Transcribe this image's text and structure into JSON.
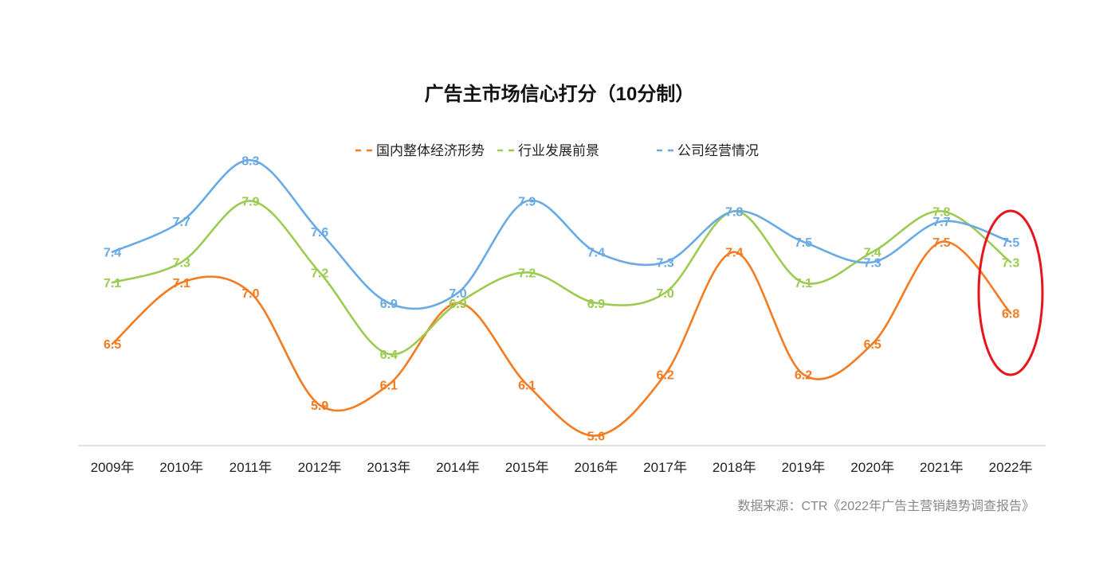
{
  "chart_data": {
    "type": "line",
    "title": "广告主市场信心打分（10分制）",
    "categories": [
      "2009年",
      "2010年",
      "2011年",
      "2012年",
      "2013年",
      "2014年",
      "2015年",
      "2016年",
      "2017年",
      "2018年",
      "2019年",
      "2020年",
      "2021年",
      "2022年"
    ],
    "series": [
      {
        "name": "国内整体经济形势",
        "color": "#F47B20",
        "values": [
          6.5,
          7.1,
          7.0,
          5.9,
          6.1,
          6.9,
          6.1,
          5.6,
          6.2,
          7.4,
          6.2,
          6.5,
          7.5,
          6.8
        ]
      },
      {
        "name": "行业发展前景",
        "color": "#9BCB50",
        "values": [
          7.1,
          7.3,
          7.9,
          7.2,
          6.4,
          6.9,
          7.2,
          6.9,
          7.0,
          7.8,
          7.1,
          7.4,
          7.8,
          7.3
        ]
      },
      {
        "name": "公司经营情况",
        "color": "#6AAAE4",
        "values": [
          7.4,
          7.7,
          8.3,
          7.6,
          6.9,
          7.0,
          7.9,
          7.4,
          7.3,
          7.8,
          7.5,
          7.3,
          7.7,
          7.5
        ]
      }
    ],
    "legend_position": "top",
    "grid": false,
    "ylim": [
      4.8,
      8.7
    ],
    "highlight": {
      "category": "2022年",
      "shape": "ellipse",
      "color": "#E8161B"
    }
  },
  "source_note": "数据来源：CTR《2022年广告主营销趋势调查报告》"
}
